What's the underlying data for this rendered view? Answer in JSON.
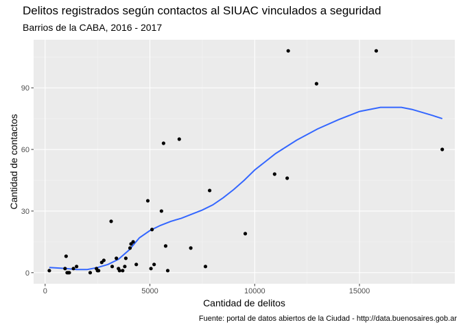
{
  "chart_data": {
    "type": "scatter",
    "title": "Delitos registrados según contactos al SIUAC vinculados a seguridad",
    "subtitle": "Barrios de la CABA, 2016 - 2017",
    "caption": "Fuente: portal de datos abiertos de la Ciudad - http://data.buenosaires.gob.ar",
    "xlabel": "Cantidad de delitos",
    "ylabel": "Cantidad de contactos",
    "xlim": [
      -550,
      19550
    ],
    "ylim": [
      -5.4,
      113.4
    ],
    "x_ticks": [
      0,
      5000,
      10000,
      15000
    ],
    "x_tick_labels": [
      "0",
      "5000",
      "10000",
      "15000"
    ],
    "y_ticks": [
      0,
      30,
      60,
      90
    ],
    "y_tick_labels": [
      "0",
      "30",
      "60",
      "90"
    ],
    "grid": true,
    "colors": {
      "panel": "#ebebeb",
      "grid_major": "#ffffff",
      "grid_minor": "#f5f5f5",
      "point": "#000000",
      "smooth": "#3366ff"
    },
    "points": [
      {
        "x": 200,
        "y": 1
      },
      {
        "x": 950,
        "y": 2
      },
      {
        "x": 1000,
        "y": 8
      },
      {
        "x": 1050,
        "y": 0
      },
      {
        "x": 1100,
        "y": 0
      },
      {
        "x": 1150,
        "y": 0
      },
      {
        "x": 1350,
        "y": 2
      },
      {
        "x": 1500,
        "y": 3
      },
      {
        "x": 2150,
        "y": 0
      },
      {
        "x": 2450,
        "y": 2
      },
      {
        "x": 2500,
        "y": 1
      },
      {
        "x": 2550,
        "y": 1
      },
      {
        "x": 2700,
        "y": 5
      },
      {
        "x": 2800,
        "y": 6
      },
      {
        "x": 3150,
        "y": 25
      },
      {
        "x": 3200,
        "y": 3
      },
      {
        "x": 3400,
        "y": 7
      },
      {
        "x": 3500,
        "y": 2
      },
      {
        "x": 3550,
        "y": 1
      },
      {
        "x": 3700,
        "y": 1
      },
      {
        "x": 3800,
        "y": 3
      },
      {
        "x": 3850,
        "y": 7
      },
      {
        "x": 4050,
        "y": 12
      },
      {
        "x": 4100,
        "y": 14
      },
      {
        "x": 4200,
        "y": 15
      },
      {
        "x": 4350,
        "y": 4
      },
      {
        "x": 4900,
        "y": 35
      },
      {
        "x": 5050,
        "y": 2
      },
      {
        "x": 5100,
        "y": 21
      },
      {
        "x": 5200,
        "y": 4
      },
      {
        "x": 5550,
        "y": 30
      },
      {
        "x": 5650,
        "y": 63
      },
      {
        "x": 5750,
        "y": 13
      },
      {
        "x": 5850,
        "y": 1
      },
      {
        "x": 6400,
        "y": 65
      },
      {
        "x": 6950,
        "y": 12
      },
      {
        "x": 7650,
        "y": 3
      },
      {
        "x": 7850,
        "y": 40
      },
      {
        "x": 9550,
        "y": 19
      },
      {
        "x": 10950,
        "y": 48
      },
      {
        "x": 11550,
        "y": 46
      },
      {
        "x": 11600,
        "y": 108
      },
      {
        "x": 12950,
        "y": 92
      },
      {
        "x": 15800,
        "y": 108
      },
      {
        "x": 18950,
        "y": 60
      }
    ],
    "smooth_line": {
      "x": [
        200,
        1000,
        1500,
        2000,
        2500,
        3000,
        3500,
        4000,
        4500,
        5000,
        5500,
        6000,
        6500,
        7000,
        7500,
        8000,
        8500,
        9000,
        9500,
        10000,
        11000,
        12000,
        13000,
        14000,
        15000,
        16000,
        17000,
        17500,
        18000,
        18500,
        18950
      ],
      "y": [
        2.5,
        2,
        1.5,
        1.5,
        2.5,
        4,
        6.5,
        11,
        17,
        20.5,
        23,
        25,
        26.5,
        28.5,
        30.5,
        33,
        36.5,
        40.5,
        45,
        50,
        58,
        64.5,
        70,
        74.5,
        78.5,
        80.5,
        80.5,
        79.5,
        78,
        76.5,
        75
      ]
    }
  }
}
